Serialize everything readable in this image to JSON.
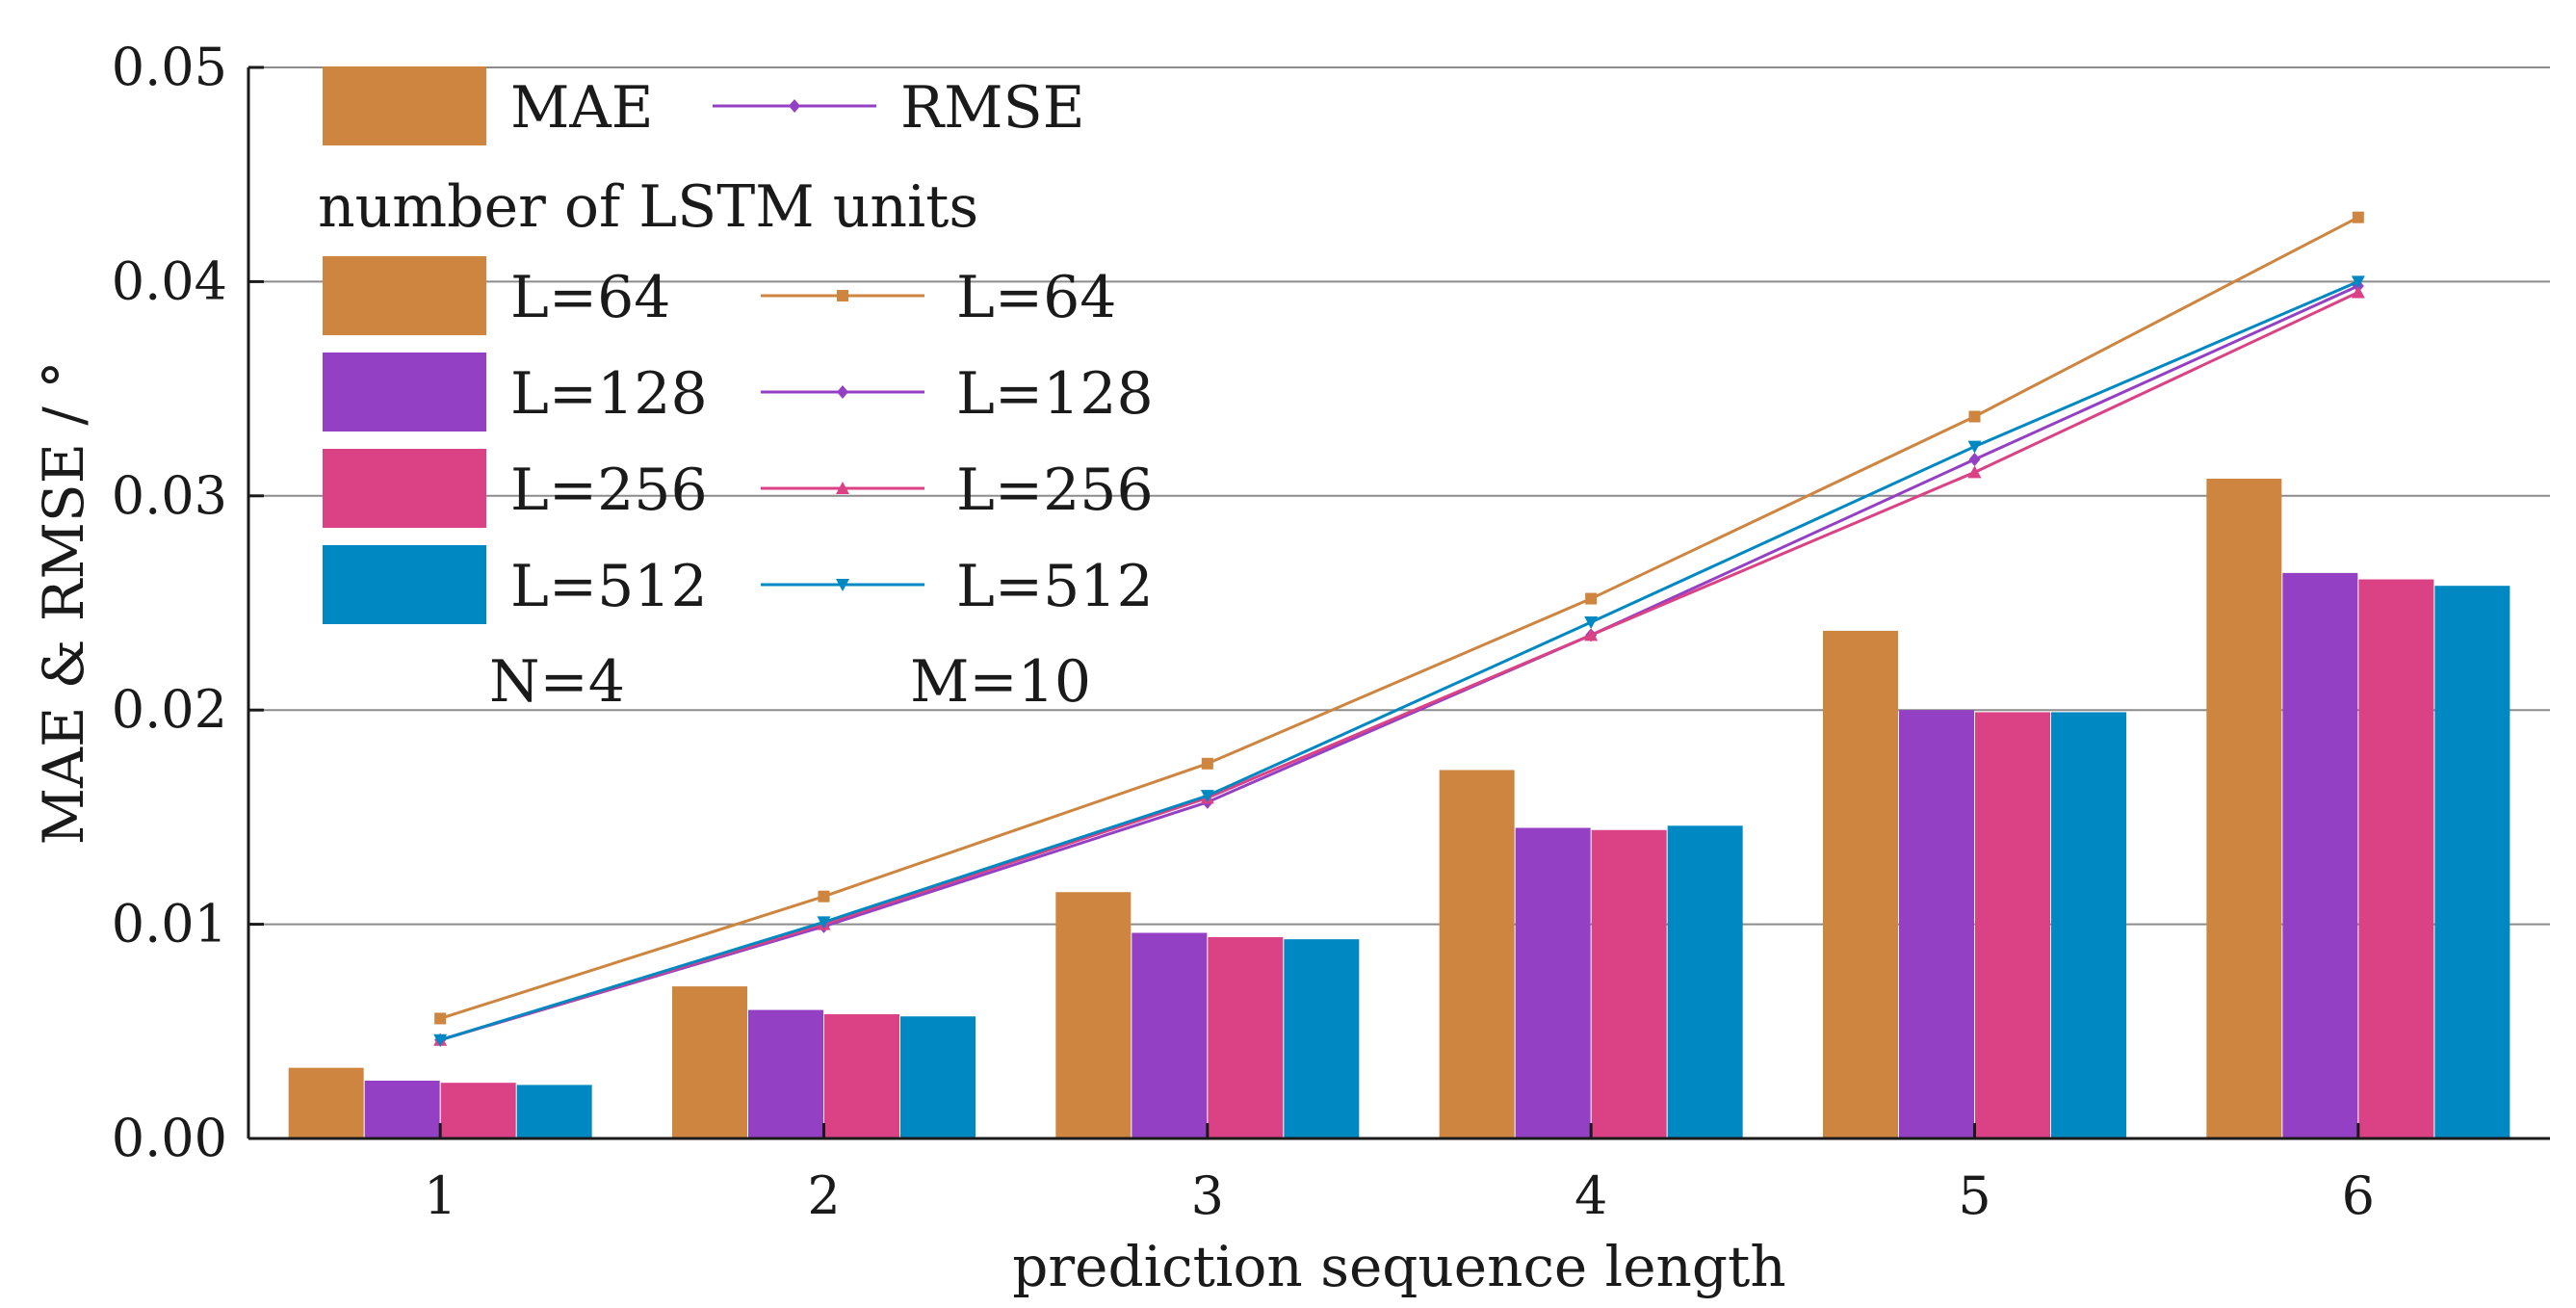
{
  "chart_data": {
    "type": "bar",
    "title": "",
    "xlabel": "prediction sequence length",
    "ylabel": "MAE & RMSE / °",
    "ylim": [
      0,
      0.05
    ],
    "yticks": [
      {
        "value": 0.0,
        "label": "0.00"
      },
      {
        "value": 0.01,
        "label": "0.01"
      },
      {
        "value": 0.02,
        "label": "0.02"
      },
      {
        "value": 0.03,
        "label": "0.03"
      },
      {
        "value": 0.04,
        "label": "0.04"
      },
      {
        "value": 0.05,
        "label": "0.05"
      }
    ],
    "grid": "horizontal",
    "categories": [
      "1",
      "2",
      "3",
      "4",
      "5",
      "6"
    ],
    "bar_series": [
      {
        "name": "L=64",
        "color": "#CD853F",
        "values": [
          0.0033,
          0.0071,
          0.0115,
          0.0172,
          0.0237,
          0.0308
        ]
      },
      {
        "name": "L=128",
        "color": "#9440C4",
        "values": [
          0.0027,
          0.006,
          0.0096,
          0.0145,
          0.02,
          0.0264
        ]
      },
      {
        "name": "L=256",
        "color": "#DB4286",
        "values": [
          0.0026,
          0.0058,
          0.0094,
          0.0144,
          0.0199,
          0.0261
        ]
      },
      {
        "name": "L=512",
        "color": "#0088C2",
        "values": [
          0.0025,
          0.0057,
          0.0093,
          0.0146,
          0.0199,
          0.0258
        ]
      }
    ],
    "line_series": [
      {
        "name": "L=64",
        "color": "#CD853F",
        "marker": "square",
        "values": [
          0.0056,
          0.0113,
          0.0175,
          0.0252,
          0.0337,
          0.043
        ]
      },
      {
        "name": "L=128",
        "color": "#9440C4",
        "marker": "diamond",
        "values": [
          0.0046,
          0.0099,
          0.0157,
          0.0235,
          0.0317,
          0.0398
        ]
      },
      {
        "name": "L=256",
        "color": "#DB4286",
        "marker": "triangle-up",
        "values": [
          0.0046,
          0.01,
          0.0159,
          0.0235,
          0.0311,
          0.0395
        ]
      },
      {
        "name": "L=512",
        "color": "#0088C2",
        "marker": "triangle-down",
        "values": [
          0.0046,
          0.0101,
          0.016,
          0.0241,
          0.0323,
          0.04
        ]
      }
    ],
    "legend": {
      "position": "top-left",
      "type_header": {
        "bar": "MAE",
        "line": "RMSE"
      },
      "group_title": "number of LSTM units",
      "notes": [
        "N=4",
        "M=10"
      ]
    }
  }
}
